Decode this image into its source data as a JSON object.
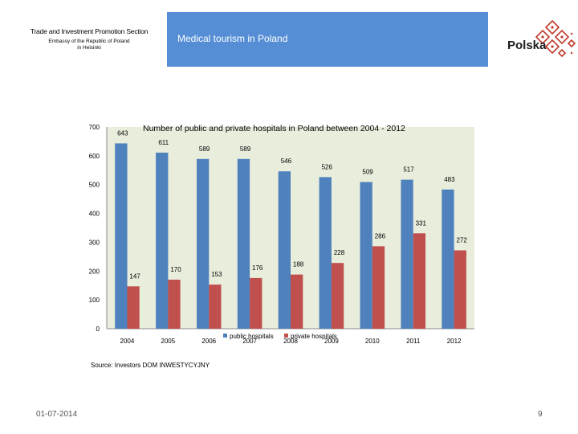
{
  "header": {
    "line1": "Trade and Investment Promotion Section",
    "line2": "Embassy of the Republic of Poland",
    "line3": "in Helsinki",
    "banner_title": "Medical tourism in Poland",
    "logo_text": "Polska"
  },
  "colors": {
    "banner": "#558ed5",
    "plot_bg": "#e8eddc",
    "public": "#4f81bd",
    "private": "#c0504d"
  },
  "chart_data": {
    "type": "bar",
    "title": "Number of public and private hospitals in Poland between 2004 - 2012",
    "categories": [
      "2004",
      "2005",
      "2006",
      "2007",
      "2008",
      "2009",
      "2010",
      "2011",
      "2012"
    ],
    "series": [
      {
        "name": "public hospitals",
        "values": [
          643,
          611,
          589,
          589,
          546,
          526,
          509,
          517,
          483
        ]
      },
      {
        "name": "private hospitals",
        "values": [
          147,
          170,
          153,
          176,
          188,
          228,
          286,
          331,
          272
        ]
      }
    ],
    "ylim": [
      0,
      700
    ],
    "yticks": [
      0,
      100,
      200,
      300,
      400,
      500,
      600,
      700
    ],
    "xlabel": "",
    "ylabel": "",
    "grid": false,
    "legend": "bottom"
  },
  "footer": {
    "source": "Source: Investors DOM INWESTYCYJNY",
    "date": "01-07-2014",
    "page": "9"
  }
}
